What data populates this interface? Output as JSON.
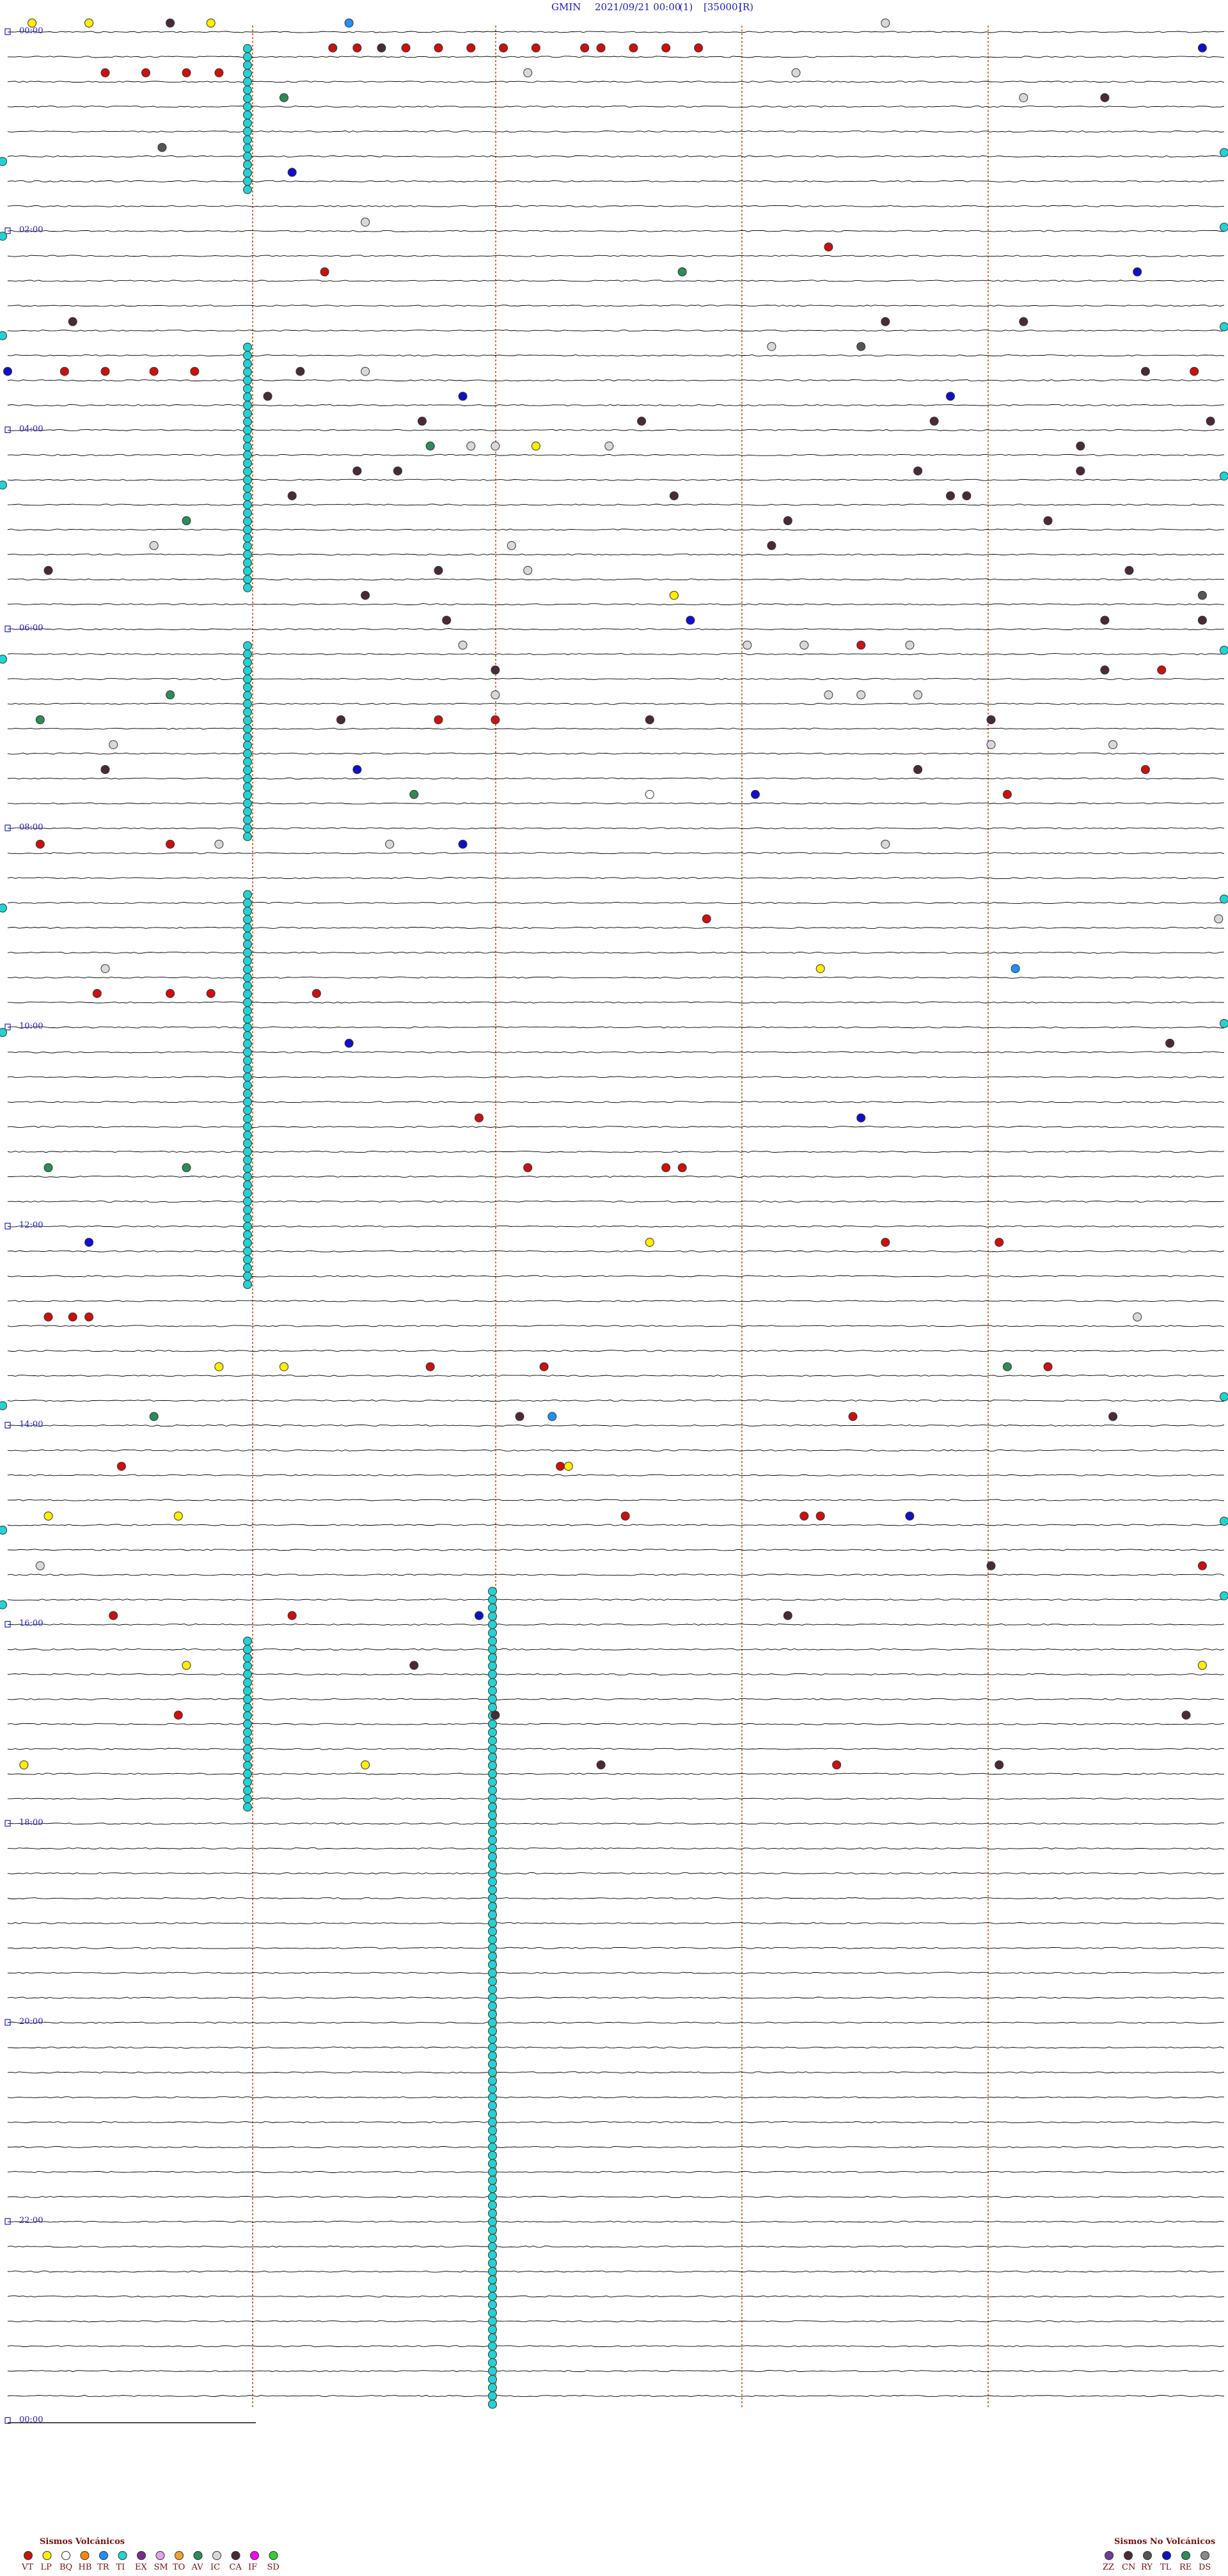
{
  "header": {
    "station": "GMIN",
    "datetime": "2021/09/21 00:00",
    "component": "(1)",
    "scale": "[35000]",
    "mode": "(R)"
  },
  "chart_data": {
    "type": "scatter",
    "plot": "helicorder",
    "rows_per_hour": 4,
    "minutes_per_row": 15,
    "hour_labels": [
      "00:00",
      "02:00",
      "04:00",
      "06:00",
      "08:00",
      "10:00",
      "12:00",
      "14:00",
      "16:00",
      "18:00",
      "20:00",
      "22:00",
      "00:00"
    ],
    "hour_label_every": 2,
    "grid": "vertical dashed lines at intervals across each trace",
    "colors": {
      "trace": "#000000",
      "grid": "#e0703a",
      "time_label": "#2020cc",
      "title": "#1a1acc",
      "legend_text": "#7a1010"
    },
    "legend": {
      "volcanic": {
        "title": "Sismos Volcánicos",
        "entries": [
          {
            "code": "VT",
            "color": "#cc1010"
          },
          {
            "code": "LP",
            "color": "#ffee00"
          },
          {
            "code": "BQ",
            "color": "#ffffff"
          },
          {
            "code": "HB",
            "color": "#ff8800"
          },
          {
            "code": "TR",
            "color": "#1e90ff"
          },
          {
            "code": "TI",
            "color": "#22d3d3"
          },
          {
            "code": "EX",
            "color": "#7d2a8a"
          },
          {
            "code": "SM",
            "color": "#e8a0e8"
          },
          {
            "code": "TO",
            "color": "#f0a030"
          },
          {
            "code": "AV",
            "color": "#2e8b57"
          },
          {
            "code": "IC",
            "color": "#d8d8d8"
          },
          {
            "code": "CA",
            "color": "#4a2a3a"
          },
          {
            "code": "IF",
            "color": "#ff00ff"
          },
          {
            "code": "SD",
            "color": "#32cd32"
          }
        ]
      },
      "non_volcanic": {
        "title": "Sismos No Volcánicos",
        "entries": [
          {
            "code": "ZZ",
            "color": "#6a3d9a"
          },
          {
            "code": "CN",
            "color": "#4a2a3a"
          },
          {
            "code": "RY",
            "color": "#555555"
          },
          {
            "code": "TL",
            "color": "#1010cc"
          },
          {
            "code": "RE",
            "color": "#2e8b57"
          },
          {
            "code": "DS",
            "color": "#888888"
          }
        ]
      }
    },
    "events": [
      {
        "row": 0,
        "min": 0.3,
        "type": "LP"
      },
      {
        "row": 0,
        "min": 1.0,
        "type": "LP"
      },
      {
        "row": 0,
        "min": 2.0,
        "type": "CA"
      },
      {
        "row": 0,
        "min": 2.5,
        "type": "LP"
      },
      {
        "row": 0,
        "min": 4.2,
        "type": "TR"
      },
      {
        "row": 0,
        "min": 10.8,
        "type": "IC"
      },
      {
        "row": 1,
        "min": 4.0,
        "type": "VT"
      },
      {
        "row": 1,
        "min": 4.3,
        "type": "VT"
      },
      {
        "row": 1,
        "min": 4.6,
        "type": "CA"
      },
      {
        "row": 1,
        "min": 4.9,
        "type": "VT"
      },
      {
        "row": 1,
        "min": 5.3,
        "type": "VT"
      },
      {
        "row": 1,
        "min": 5.7,
        "type": "VT"
      },
      {
        "row": 1,
        "min": 6.1,
        "type": "VT"
      },
      {
        "row": 1,
        "min": 6.5,
        "type": "VT"
      },
      {
        "row": 1,
        "min": 7.1,
        "type": "VT"
      },
      {
        "row": 1,
        "min": 7.3,
        "type": "VT"
      },
      {
        "row": 1,
        "min": 7.7,
        "type": "VT"
      },
      {
        "row": 1,
        "min": 8.1,
        "type": "VT"
      },
      {
        "row": 1,
        "min": 8.5,
        "type": "VT"
      },
      {
        "row": 1,
        "min": 14.7,
        "type": "TL"
      },
      {
        "row": 2,
        "min": 1.2,
        "type": "VT"
      },
      {
        "row": 2,
        "min": 1.7,
        "type": "VT"
      },
      {
        "row": 2,
        "min": 2.2,
        "type": "VT"
      },
      {
        "row": 2,
        "min": 2.6,
        "type": "VT"
      },
      {
        "row": 2,
        "min": 6.4,
        "type": "IC"
      },
      {
        "row": 2,
        "min": 9.7,
        "type": "IC"
      },
      {
        "row": 3,
        "min": 3.4,
        "type": "AV"
      },
      {
        "row": 3,
        "min": 12.5,
        "type": "IC"
      },
      {
        "row": 3,
        "min": 13.5,
        "type": "CA"
      },
      {
        "row": 5,
        "min": 1.9,
        "type": "RY"
      },
      {
        "row": 6,
        "min": 3.5,
        "type": "TL"
      },
      {
        "row": 8,
        "min": 4.4,
        "type": "IC"
      },
      {
        "row": 9,
        "min": 10.1,
        "type": "VT"
      },
      {
        "row": 10,
        "min": 3.9,
        "type": "VT"
      },
      {
        "row": 10,
        "min": 8.3,
        "type": "AV"
      },
      {
        "row": 10,
        "min": 13.9,
        "type": "TL"
      },
      {
        "row": 12,
        "min": 0.8,
        "type": "CA"
      },
      {
        "row": 12,
        "min": 10.8,
        "type": "CA"
      },
      {
        "row": 12,
        "min": 12.5,
        "type": "CA"
      },
      {
        "row": 13,
        "min": 9.4,
        "type": "IC"
      },
      {
        "row": 13,
        "min": 10.5,
        "type": "RY"
      },
      {
        "row": 14,
        "min": 0.0,
        "type": "TL"
      },
      {
        "row": 14,
        "min": 0.7,
        "type": "VT"
      },
      {
        "row": 14,
        "min": 1.2,
        "type": "VT"
      },
      {
        "row": 14,
        "min": 1.8,
        "type": "VT"
      },
      {
        "row": 14,
        "min": 2.3,
        "type": "VT"
      },
      {
        "row": 14,
        "min": 3.6,
        "type": "CA"
      },
      {
        "row": 14,
        "min": 4.4,
        "type": "IC"
      },
      {
        "row": 14,
        "min": 14.0,
        "type": "CA"
      },
      {
        "row": 14,
        "min": 14.6,
        "type": "VT"
      },
      {
        "row": 15,
        "min": 3.2,
        "type": "CA"
      },
      {
        "row": 15,
        "min": 5.6,
        "type": "TL"
      },
      {
        "row": 15,
        "min": 11.6,
        "type": "TL"
      },
      {
        "row": 16,
        "min": 5.1,
        "type": "CA"
      },
      {
        "row": 16,
        "min": 7.8,
        "type": "CA"
      },
      {
        "row": 16,
        "min": 11.4,
        "type": "CA"
      },
      {
        "row": 16,
        "min": 14.8,
        "type": "CA"
      },
      {
        "row": 17,
        "min": 5.2,
        "type": "AV"
      },
      {
        "row": 17,
        "min": 5.7,
        "type": "IC"
      },
      {
        "row": 17,
        "min": 6.0,
        "type": "IC"
      },
      {
        "row": 17,
        "min": 6.5,
        "type": "LP"
      },
      {
        "row": 17,
        "min": 7.4,
        "type": "IC"
      },
      {
        "row": 17,
        "min": 13.2,
        "type": "CA"
      },
      {
        "row": 18,
        "min": 4.3,
        "type": "CA"
      },
      {
        "row": 18,
        "min": 4.8,
        "type": "CA"
      },
      {
        "row": 18,
        "min": 11.2,
        "type": "CA"
      },
      {
        "row": 18,
        "min": 13.2,
        "type": "CA"
      },
      {
        "row": 19,
        "min": 3.5,
        "type": "CA"
      },
      {
        "row": 19,
        "min": 8.2,
        "type": "CA"
      },
      {
        "row": 19,
        "min": 11.6,
        "type": "CA"
      },
      {
        "row": 19,
        "min": 11.8,
        "type": "CA"
      },
      {
        "row": 20,
        "min": 2.2,
        "type": "AV"
      },
      {
        "row": 20,
        "min": 9.6,
        "type": "CA"
      },
      {
        "row": 20,
        "min": 12.8,
        "type": "CA"
      },
      {
        "row": 21,
        "min": 1.8,
        "type": "IC"
      },
      {
        "row": 21,
        "min": 6.2,
        "type": "IC"
      },
      {
        "row": 21,
        "min": 9.4,
        "type": "CA"
      },
      {
        "row": 22,
        "min": 0.5,
        "type": "CA"
      },
      {
        "row": 22,
        "min": 5.3,
        "type": "CA"
      },
      {
        "row": 22,
        "min": 6.4,
        "type": "IC"
      },
      {
        "row": 22,
        "min": 13.8,
        "type": "CA"
      },
      {
        "row": 23,
        "min": 4.4,
        "type": "CA"
      },
      {
        "row": 23,
        "min": 8.2,
        "type": "LP"
      },
      {
        "row": 23,
        "min": 14.7,
        "type": "RY"
      },
      {
        "row": 24,
        "min": 5.4,
        "type": "CA"
      },
      {
        "row": 24,
        "min": 8.4,
        "type": "TL"
      },
      {
        "row": 24,
        "min": 13.5,
        "type": "CA"
      },
      {
        "row": 24,
        "min": 14.7,
        "type": "CA"
      },
      {
        "row": 25,
        "min": 5.6,
        "type": "IC"
      },
      {
        "row": 25,
        "min": 9.1,
        "type": "IC"
      },
      {
        "row": 25,
        "min": 9.8,
        "type": "IC"
      },
      {
        "row": 25,
        "min": 10.5,
        "type": "VT"
      },
      {
        "row": 25,
        "min": 11.1,
        "type": "IC"
      },
      {
        "row": 26,
        "min": 6.0,
        "type": "CA"
      },
      {
        "row": 26,
        "min": 13.5,
        "type": "CA"
      },
      {
        "row": 26,
        "min": 14.2,
        "type": "VT"
      },
      {
        "row": 27,
        "min": 2.0,
        "type": "AV"
      },
      {
        "row": 27,
        "min": 6.0,
        "type": "IC"
      },
      {
        "row": 27,
        "min": 10.1,
        "type": "IC"
      },
      {
        "row": 27,
        "min": 10.5,
        "type": "IC"
      },
      {
        "row": 27,
        "min": 11.2,
        "type": "IC"
      },
      {
        "row": 28,
        "min": 0.4,
        "type": "AV"
      },
      {
        "row": 28,
        "min": 4.1,
        "type": "CA"
      },
      {
        "row": 28,
        "min": 5.3,
        "type": "VT"
      },
      {
        "row": 28,
        "min": 6.0,
        "type": "VT"
      },
      {
        "row": 28,
        "min": 7.9,
        "type": "CA"
      },
      {
        "row": 28,
        "min": 12.1,
        "type": "CA"
      },
      {
        "row": 29,
        "min": 1.3,
        "type": "IC"
      },
      {
        "row": 29,
        "min": 12.1,
        "type": "IC"
      },
      {
        "row": 29,
        "min": 13.6,
        "type": "IC"
      },
      {
        "row": 30,
        "min": 1.2,
        "type": "CA"
      },
      {
        "row": 30,
        "min": 4.3,
        "type": "TL"
      },
      {
        "row": 30,
        "min": 11.2,
        "type": "CA"
      },
      {
        "row": 30,
        "min": 14.0,
        "type": "VT"
      },
      {
        "row": 31,
        "min": 5.0,
        "type": "AV"
      },
      {
        "row": 31,
        "min": 7.9,
        "type": "BQ"
      },
      {
        "row": 31,
        "min": 9.2,
        "type": "TL"
      },
      {
        "row": 31,
        "min": 12.3,
        "type": "VT"
      },
      {
        "row": 33,
        "min": 0.4,
        "type": "VT"
      },
      {
        "row": 33,
        "min": 2.0,
        "type": "VT"
      },
      {
        "row": 33,
        "min": 2.6,
        "type": "IC"
      },
      {
        "row": 33,
        "min": 4.7,
        "type": "IC"
      },
      {
        "row": 33,
        "min": 5.6,
        "type": "TL"
      },
      {
        "row": 33,
        "min": 10.8,
        "type": "IC"
      },
      {
        "row": 36,
        "min": 8.6,
        "type": "VT"
      },
      {
        "row": 36,
        "min": 14.9,
        "type": "IC"
      },
      {
        "row": 38,
        "min": 1.2,
        "type": "IC"
      },
      {
        "row": 38,
        "min": 10.0,
        "type": "LP"
      },
      {
        "row": 38,
        "min": 12.4,
        "type": "TR"
      },
      {
        "row": 39,
        "min": 1.1,
        "type": "VT"
      },
      {
        "row": 39,
        "min": 2.0,
        "type": "VT"
      },
      {
        "row": 39,
        "min": 2.5,
        "type": "VT"
      },
      {
        "row": 39,
        "min": 3.8,
        "type": "VT"
      },
      {
        "row": 41,
        "min": 4.2,
        "type": "TL"
      },
      {
        "row": 41,
        "min": 14.3,
        "type": "CA"
      },
      {
        "row": 44,
        "min": 5.8,
        "type": "VT"
      },
      {
        "row": 44,
        "min": 10.5,
        "type": "TL"
      },
      {
        "row": 46,
        "min": 0.5,
        "type": "AV"
      },
      {
        "row": 46,
        "min": 2.2,
        "type": "AV"
      },
      {
        "row": 46,
        "min": 6.4,
        "type": "VT"
      },
      {
        "row": 46,
        "min": 8.1,
        "type": "VT"
      },
      {
        "row": 46,
        "min": 8.3,
        "type": "VT"
      },
      {
        "row": 49,
        "min": 1.0,
        "type": "TL"
      },
      {
        "row": 49,
        "min": 7.9,
        "type": "LP"
      },
      {
        "row": 49,
        "min": 10.8,
        "type": "VT"
      },
      {
        "row": 49,
        "min": 12.2,
        "type": "VT"
      },
      {
        "row": 52,
        "min": 0.5,
        "type": "VT"
      },
      {
        "row": 52,
        "min": 0.8,
        "type": "VT"
      },
      {
        "row": 52,
        "min": 1.0,
        "type": "VT"
      },
      {
        "row": 52,
        "min": 13.9,
        "type": "IC"
      },
      {
        "row": 54,
        "min": 2.6,
        "type": "LP"
      },
      {
        "row": 54,
        "min": 3.4,
        "type": "LP"
      },
      {
        "row": 54,
        "min": 5.2,
        "type": "VT"
      },
      {
        "row": 54,
        "min": 6.6,
        "type": "VT"
      },
      {
        "row": 54,
        "min": 12.3,
        "type": "AV"
      },
      {
        "row": 54,
        "min": 12.8,
        "type": "VT"
      },
      {
        "row": 56,
        "min": 1.8,
        "type": "AV"
      },
      {
        "row": 56,
        "min": 6.3,
        "type": "CA"
      },
      {
        "row": 56,
        "min": 6.7,
        "type": "TR"
      },
      {
        "row": 56,
        "min": 10.4,
        "type": "VT"
      },
      {
        "row": 56,
        "min": 13.6,
        "type": "CA"
      },
      {
        "row": 58,
        "min": 1.4,
        "type": "VT"
      },
      {
        "row": 58,
        "min": 6.8,
        "type": "VT"
      },
      {
        "row": 58,
        "min": 6.9,
        "type": "LP"
      },
      {
        "row": 60,
        "min": 0.5,
        "type": "LP"
      },
      {
        "row": 60,
        "min": 2.1,
        "type": "LP"
      },
      {
        "row": 60,
        "min": 7.6,
        "type": "VT"
      },
      {
        "row": 60,
        "min": 9.8,
        "type": "VT"
      },
      {
        "row": 60,
        "min": 10.0,
        "type": "VT"
      },
      {
        "row": 60,
        "min": 11.1,
        "type": "TL"
      },
      {
        "row": 62,
        "min": 0.4,
        "type": "IC"
      },
      {
        "row": 62,
        "min": 12.1,
        "type": "CA"
      },
      {
        "row": 62,
        "min": 14.7,
        "type": "VT"
      },
      {
        "row": 64,
        "min": 1.3,
        "type": "VT"
      },
      {
        "row": 64,
        "min": 3.5,
        "type": "VT"
      },
      {
        "row": 64,
        "min": 5.8,
        "type": "TL"
      },
      {
        "row": 64,
        "min": 9.6,
        "type": "CA"
      },
      {
        "row": 66,
        "min": 2.2,
        "type": "LP"
      },
      {
        "row": 66,
        "min": 5.0,
        "type": "CA"
      },
      {
        "row": 66,
        "min": 14.7,
        "type": "LP"
      },
      {
        "row": 68,
        "min": 2.1,
        "type": "VT"
      },
      {
        "row": 68,
        "min": 6.0,
        "type": "CA"
      },
      {
        "row": 68,
        "min": 14.5,
        "type": "CA"
      },
      {
        "row": 70,
        "min": 0.2,
        "type": "LP"
      },
      {
        "row": 70,
        "min": 4.4,
        "type": "LP"
      },
      {
        "row": 70,
        "min": 7.3,
        "type": "CA"
      },
      {
        "row": 70,
        "min": 10.2,
        "type": "VT"
      },
      {
        "row": 70,
        "min": 12.2,
        "type": "CA"
      }
    ]
  }
}
